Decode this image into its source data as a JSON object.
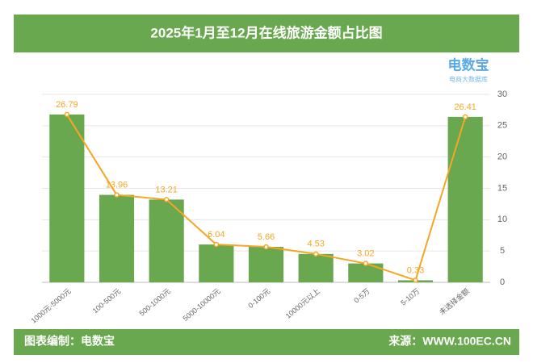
{
  "chart_data": {
    "type": "bar-line",
    "title": "2025年1月至12月在线旅游金额占比图",
    "categories": [
      "1000元-5000元",
      "100-500元",
      "500-1000元",
      "5000-10000元",
      "0-100元",
      "10000元以上",
      "0-5万",
      "5-10万",
      "未选择金额"
    ],
    "values": [
      26.79,
      13.96,
      13.21,
      6.04,
      5.66,
      4.53,
      3.02,
      0.33,
      26.41
    ],
    "color": "#6aa84f",
    "line_color": "#f5a623",
    "ylim": [
      0,
      30
    ],
    "yticks": [
      0,
      5,
      10,
      15,
      20,
      25,
      30
    ],
    "grid": true,
    "logo": {
      "name": "电数宝",
      "tagline": "电商大数据库"
    },
    "footer": {
      "left": "图表编制：电数宝",
      "right": "来源：WWW.100EC.CN"
    }
  }
}
